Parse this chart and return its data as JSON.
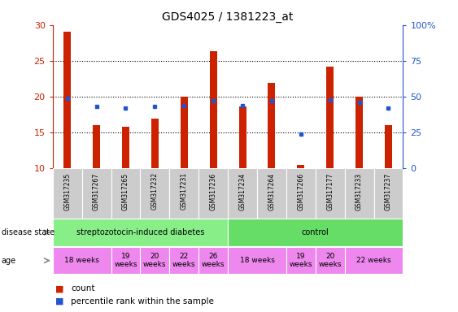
{
  "title": "GDS4025 / 1381223_at",
  "samples": [
    "GSM317235",
    "GSM317267",
    "GSM317265",
    "GSM317232",
    "GSM317231",
    "GSM317236",
    "GSM317234",
    "GSM317264",
    "GSM317266",
    "GSM317177",
    "GSM317233",
    "GSM317237"
  ],
  "count_values": [
    29.1,
    16.0,
    15.8,
    17.0,
    20.0,
    26.3,
    18.7,
    21.9,
    10.5,
    24.2,
    20.0,
    16.0
  ],
  "percentile_values": [
    49,
    43,
    42,
    43,
    44,
    47,
    44,
    47,
    24,
    48,
    46,
    42
  ],
  "ylim_left": [
    10,
    30
  ],
  "ylim_right": [
    0,
    100
  ],
  "yticks_left": [
    10,
    15,
    20,
    25,
    30
  ],
  "yticks_right": [
    0,
    25,
    50,
    75,
    100
  ],
  "bar_color": "#cc2200",
  "dot_color": "#2255cc",
  "bg_color": "#ffffff",
  "tick_color_left": "#cc2200",
  "tick_color_right": "#2255cc",
  "grid_color": "#888888",
  "sample_bg_color": "#cccccc",
  "disease_groups": [
    {
      "label": "streptozotocin-induced diabetes",
      "start": 0,
      "end": 6,
      "color": "#88ee88"
    },
    {
      "label": "control",
      "start": 6,
      "end": 12,
      "color": "#66dd66"
    }
  ],
  "age_groups": [
    {
      "label": "18 weeks",
      "start": 0,
      "end": 2
    },
    {
      "label": "19\nweeks",
      "start": 2,
      "end": 3
    },
    {
      "label": "20\nweeks",
      "start": 3,
      "end": 4
    },
    {
      "label": "22\nweeks",
      "start": 4,
      "end": 5
    },
    {
      "label": "26\nweeks",
      "start": 5,
      "end": 6
    },
    {
      "label": "18 weeks",
      "start": 6,
      "end": 8
    },
    {
      "label": "19\nweeks",
      "start": 8,
      "end": 9
    },
    {
      "label": "20\nweeks",
      "start": 9,
      "end": 10
    },
    {
      "label": "22 weeks",
      "start": 10,
      "end": 12
    }
  ],
  "age_color": "#ee88ee",
  "bar_width": 0.25
}
